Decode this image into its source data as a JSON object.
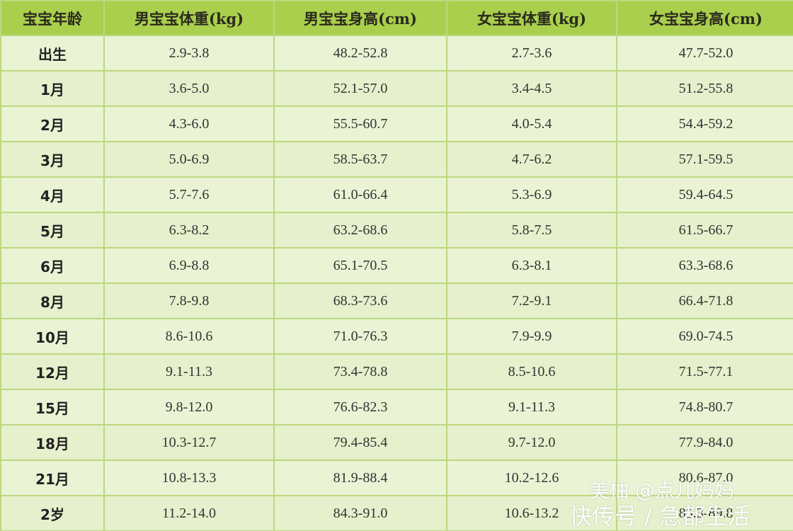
{
  "table": {
    "headers": [
      "宝宝年龄",
      "男宝宝体重(kg)",
      "男宝宝身高(cm)",
      "女宝宝体重(kg)",
      "女宝宝身高(cm)"
    ],
    "rows": [
      [
        "出生",
        "2.9-3.8",
        "48.2-52.8",
        "2.7-3.6",
        "47.7-52.0"
      ],
      [
        "1月",
        "3.6-5.0",
        "52.1-57.0",
        "3.4-4.5",
        "51.2-55.8"
      ],
      [
        "2月",
        "4.3-6.0",
        "55.5-60.7",
        "4.0-5.4",
        "54.4-59.2"
      ],
      [
        "3月",
        "5.0-6.9",
        "58.5-63.7",
        "4.7-6.2",
        "57.1-59.5"
      ],
      [
        "4月",
        "5.7-7.6",
        "61.0-66.4",
        "5.3-6.9",
        "59.4-64.5"
      ],
      [
        "5月",
        "6.3-8.2",
        "63.2-68.6",
        "5.8-7.5",
        "61.5-66.7"
      ],
      [
        "6月",
        "6.9-8.8",
        "65.1-70.5",
        "6.3-8.1",
        "63.3-68.6"
      ],
      [
        "8月",
        "7.8-9.8",
        "68.3-73.6",
        "7.2-9.1",
        "66.4-71.8"
      ],
      [
        "10月",
        "8.6-10.6",
        "71.0-76.3",
        "7.9-9.9",
        "69.0-74.5"
      ],
      [
        "12月",
        "9.1-11.3",
        "73.4-78.8",
        "8.5-10.6",
        "71.5-77.1"
      ],
      [
        "15月",
        "9.8-12.0",
        "76.6-82.3",
        "9.1-11.3",
        "74.8-80.7"
      ],
      [
        "18月",
        "10.3-12.7",
        "79.4-85.4",
        "9.7-12.0",
        "77.9-84.0"
      ],
      [
        "21月",
        "10.8-13.3",
        "81.9-88.4",
        "10.2-12.6",
        "80.6-87.0"
      ],
      [
        "2岁",
        "11.2-14.0",
        "84.3-91.0",
        "10.6-13.2",
        "83.3-89.8"
      ]
    ]
  },
  "watermark": {
    "line1": "美柚 @点儿妈妈",
    "line2": "快传号 / 急都生活"
  },
  "colors": {
    "header_bg": "#a9cf4c",
    "cell_bg": "#eaf3d4",
    "grid_line": "#bcd87e"
  }
}
